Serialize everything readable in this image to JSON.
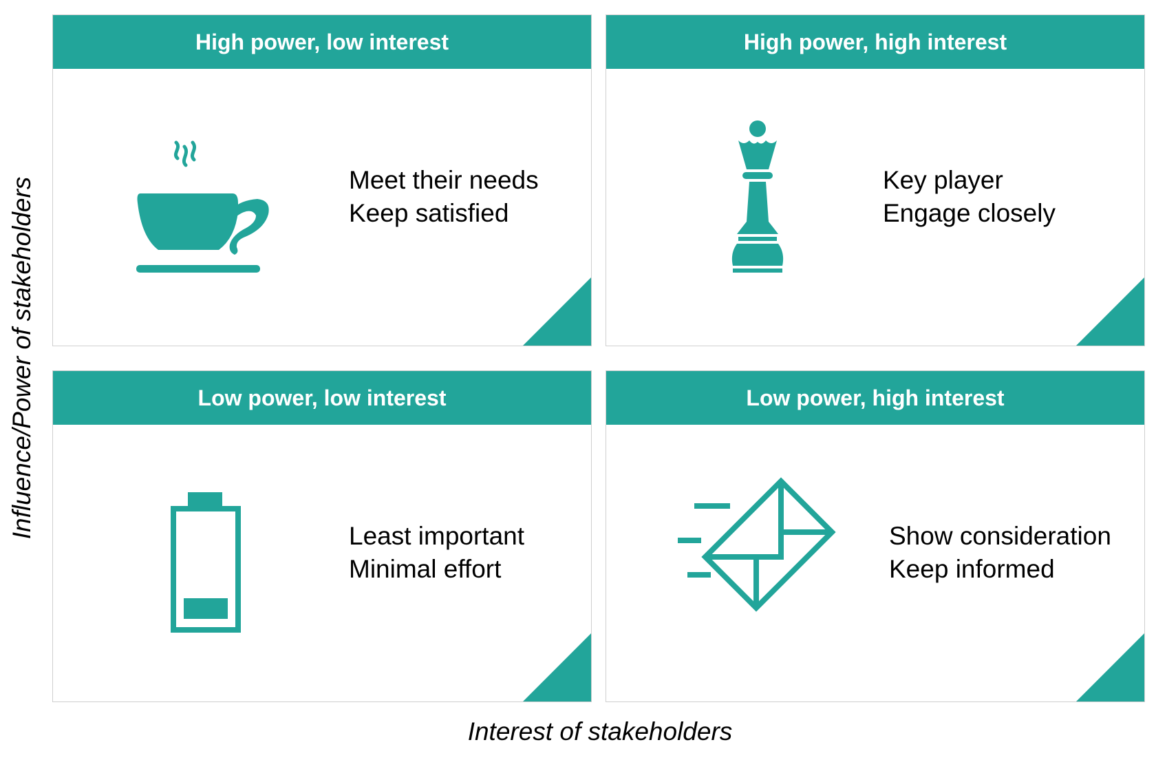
{
  "colors": {
    "accent": "#22a59a",
    "header_text": "#ffffff",
    "body_text": "#000000",
    "border": "#cfcfcf"
  },
  "axes": {
    "y_label": "Influence/Power of stakeholders",
    "x_label": "Interest of stakeholders"
  },
  "quadrants": {
    "top_left": {
      "title": "High power, low interest",
      "icon": "coffee-cup-icon",
      "line1": "Meet their needs",
      "line2": "Keep satisfied"
    },
    "top_right": {
      "title": "High power, high interest",
      "icon": "chess-queen-icon",
      "line1": "Key player",
      "line2": "Engage closely"
    },
    "bottom_left": {
      "title": "Low power, low interest",
      "icon": "battery-low-icon",
      "line1": "Least important",
      "line2": "Minimal effort"
    },
    "bottom_right": {
      "title": "Low power, high interest",
      "icon": "mail-send-icon",
      "line1": "Show consideration",
      "line2": "Keep informed"
    }
  }
}
